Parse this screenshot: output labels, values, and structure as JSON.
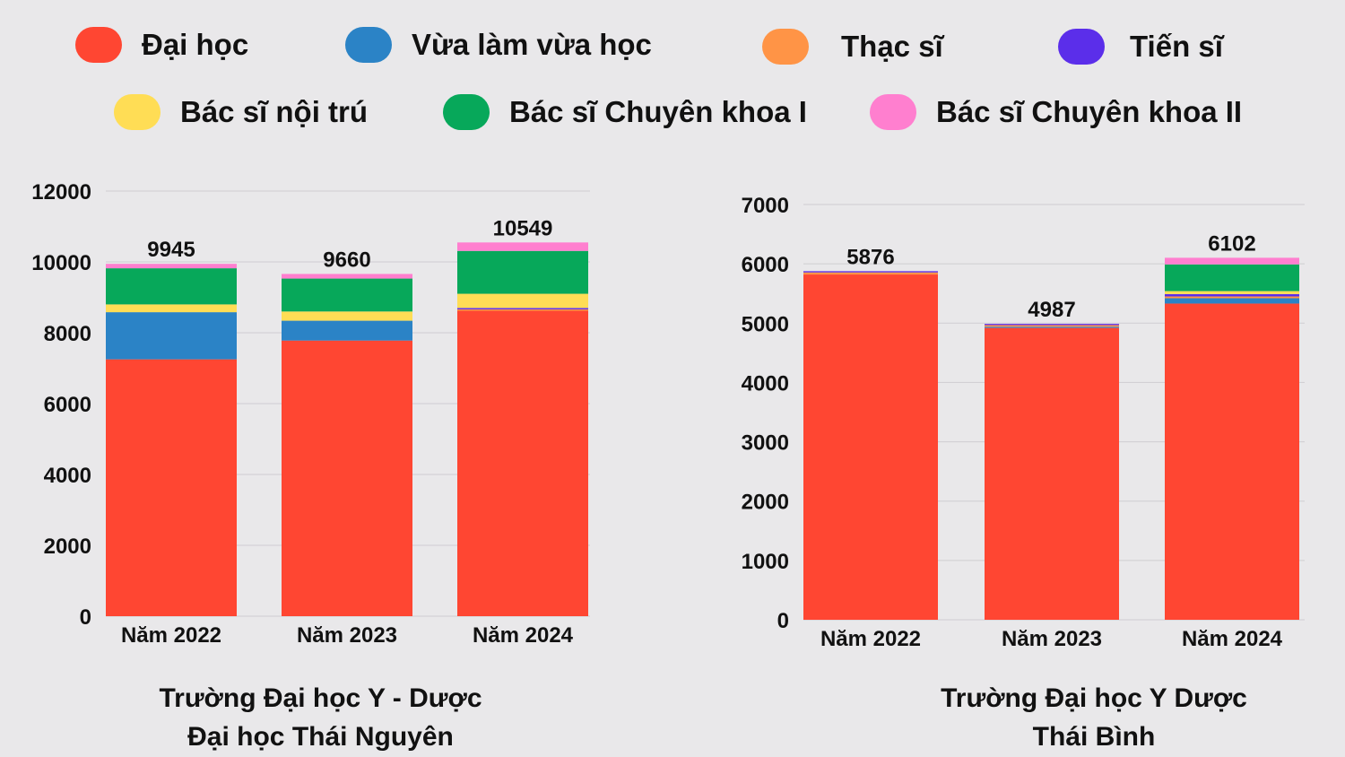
{
  "legend": [
    {
      "name": "Đại học",
      "color": "#ff4632"
    },
    {
      "name": "Vừa làm vừa học",
      "color": "#2b83c6"
    },
    {
      "name": "Thạc sĩ",
      "color": "#ff9446"
    },
    {
      "name": "Tiến sĩ",
      "color": "#5b2eea"
    },
    {
      "name": "Bác sĩ nội trú",
      "color": "#ffdd55"
    },
    {
      "name": "Bác sĩ Chuyên khoa I",
      "color": "#07a85a"
    },
    {
      "name": "Bác sĩ Chuyên khoa II",
      "color": "#ff7fcf"
    }
  ],
  "chart_data": [
    {
      "type": "bar",
      "stacked": true,
      "title_lines": [
        "Trường Đại học Y - Dược",
        "Đại học Thái Nguyên"
      ],
      "categories": [
        "Năm 2022",
        "Năm 2023",
        "Năm 2024"
      ],
      "ylim": [
        0,
        12000
      ],
      "yticks": [
        0,
        2000,
        4000,
        6000,
        8000,
        10000,
        12000
      ],
      "totals": [
        9945,
        9660,
        10549
      ],
      "series": [
        {
          "name": "Đại học",
          "values": [
            7250,
            7780,
            8620
          ]
        },
        {
          "name": "Vừa làm vừa học",
          "values": [
            1330,
            560,
            0
          ]
        },
        {
          "name": "Thạc sĩ",
          "values": [
            0,
            0,
            40
          ]
        },
        {
          "name": "Tiến sĩ",
          "values": [
            0,
            0,
            40
          ]
        },
        {
          "name": "Bác sĩ nội trú",
          "values": [
            220,
            260,
            400
          ]
        },
        {
          "name": "Bác sĩ Chuyên khoa I",
          "values": [
            1020,
            930,
            1210
          ]
        },
        {
          "name": "Bác sĩ Chuyên khoa II",
          "values": [
            125,
            130,
            239
          ]
        }
      ],
      "grid": true
    },
    {
      "type": "bar",
      "stacked": true,
      "title_lines": [
        "Trường Đại học Y Dược",
        "Thái Bình"
      ],
      "categories": [
        "Năm 2022",
        "Năm 2023",
        "Năm 2024"
      ],
      "ylim": [
        0,
        7000
      ],
      "yticks": [
        0,
        1000,
        2000,
        3000,
        4000,
        5000,
        6000,
        7000
      ],
      "totals": [
        5876,
        4987,
        6102
      ],
      "series": [
        {
          "name": "Đại học",
          "values": [
            5820,
            4920,
            5330
          ]
        },
        {
          "name": "Vừa làm vừa học",
          "values": [
            0,
            20,
            90
          ]
        },
        {
          "name": "Thạc sĩ",
          "values": [
            35,
            27,
            30
          ]
        },
        {
          "name": "Tiến sĩ",
          "values": [
            21,
            20,
            40
          ]
        },
        {
          "name": "Bác sĩ nội trú",
          "values": [
            0,
            0,
            50
          ]
        },
        {
          "name": "Bác sĩ Chuyên khoa I",
          "values": [
            0,
            0,
            450
          ]
        },
        {
          "name": "Bác sĩ Chuyên khoa II",
          "values": [
            0,
            0,
            112
          ]
        }
      ],
      "grid": true
    }
  ]
}
